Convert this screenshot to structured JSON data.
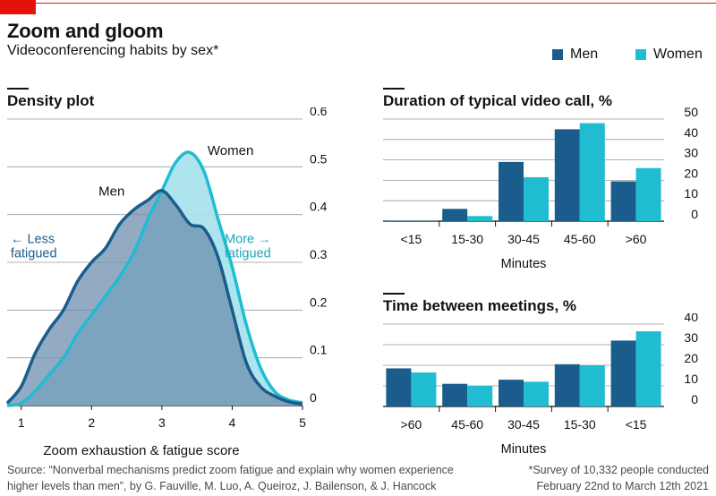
{
  "header": {
    "title": "Zoom and gloom",
    "subtitle": "Videoconferencing habits by sex*"
  },
  "colors": {
    "men": "#1a5d8c",
    "women": "#1fbcd2",
    "men_fill": "#6e8fae",
    "women_fill": "#a9e3ec",
    "overlap_fill": "#5c92a6",
    "grid": "#4d4d4d",
    "accent_red": "#e3120b"
  },
  "legend": {
    "men": "Men",
    "women": "Women"
  },
  "density": {
    "panel_title": "Density plot",
    "men_label": "Men",
    "women_label": "Women",
    "less_label_line1": "← Less",
    "less_label_line2": "fatigued",
    "more_label_line1": "More →",
    "more_label_line2": "fatigued"
  },
  "duration": {
    "panel_title": "Duration of typical video call, %"
  },
  "between": {
    "panel_title": "Time between meetings, %"
  },
  "footer": {
    "source_line1": "Source: “Nonverbal mechanisms predict zoom fatigue and explain why women experience",
    "source_line2": "higher levels than men”, by G. Fauville, M. Luo, A. Queiroz, J. Bailenson, & J. Hancock",
    "note_line1": "*Survey of 10,332 people conducted",
    "note_line2": "February 22nd to March 12th 2021"
  },
  "chart_data": [
    {
      "type": "area",
      "title": "Density plot",
      "xlabel": "Zoom exhaustion & fatigue score",
      "ylabel": "",
      "xlim": [
        0.8,
        5.0
      ],
      "ylim": [
        0,
        0.6
      ],
      "xticks": [
        "1",
        "2",
        "3",
        "4",
        "5"
      ],
      "yticks": [
        "0",
        "0.1",
        "0.2",
        "0.3",
        "0.4",
        "0.5",
        "0.6"
      ],
      "series": [
        {
          "name": "Men",
          "x": [
            0.8,
            1.0,
            1.2,
            1.4,
            1.6,
            1.8,
            2.0,
            2.2,
            2.4,
            2.6,
            2.8,
            3.0,
            3.2,
            3.4,
            3.6,
            3.8,
            4.0,
            4.2,
            4.4,
            4.6,
            4.8,
            5.0
          ],
          "y": [
            0.005,
            0.04,
            0.11,
            0.16,
            0.2,
            0.26,
            0.3,
            0.33,
            0.38,
            0.41,
            0.43,
            0.45,
            0.42,
            0.38,
            0.37,
            0.31,
            0.2,
            0.09,
            0.04,
            0.02,
            0.008,
            0.003
          ]
        },
        {
          "name": "Women",
          "x": [
            0.8,
            1.0,
            1.2,
            1.4,
            1.6,
            1.8,
            2.0,
            2.2,
            2.4,
            2.6,
            2.8,
            3.0,
            3.2,
            3.4,
            3.6,
            3.8,
            4.0,
            4.2,
            4.4,
            4.6,
            4.8,
            5.0
          ],
          "y": [
            0.0,
            0.005,
            0.03,
            0.065,
            0.1,
            0.15,
            0.19,
            0.23,
            0.27,
            0.32,
            0.39,
            0.45,
            0.51,
            0.53,
            0.49,
            0.39,
            0.29,
            0.17,
            0.08,
            0.03,
            0.012,
            0.006
          ]
        }
      ]
    },
    {
      "type": "bar",
      "title": "Duration of typical video call, %",
      "xlabel": "Minutes",
      "ylabel": "",
      "ylim": [
        0,
        50
      ],
      "yticks": [
        "0",
        "10",
        "20",
        "30",
        "40",
        "50"
      ],
      "categories": [
        "<15",
        "15-30",
        "30-45",
        "45-60",
        ">60"
      ],
      "series": [
        {
          "name": "Men",
          "values": [
            0.2,
            6,
            29,
            45,
            19.5
          ]
        },
        {
          "name": "Women",
          "values": [
            0.1,
            2.5,
            21.5,
            48,
            26
          ]
        }
      ]
    },
    {
      "type": "bar",
      "title": "Time between meetings, %",
      "xlabel": "Minutes",
      "ylabel": "",
      "ylim": [
        0,
        40
      ],
      "yticks": [
        "0",
        "10",
        "20",
        "30",
        "40"
      ],
      "categories": [
        ">60",
        "45-60",
        "30-45",
        "15-30",
        "<15"
      ],
      "series": [
        {
          "name": "Men",
          "values": [
            18.5,
            11,
            13,
            20.5,
            32
          ]
        },
        {
          "name": "Women",
          "values": [
            16.5,
            10,
            12,
            20,
            36.5
          ]
        }
      ]
    }
  ]
}
